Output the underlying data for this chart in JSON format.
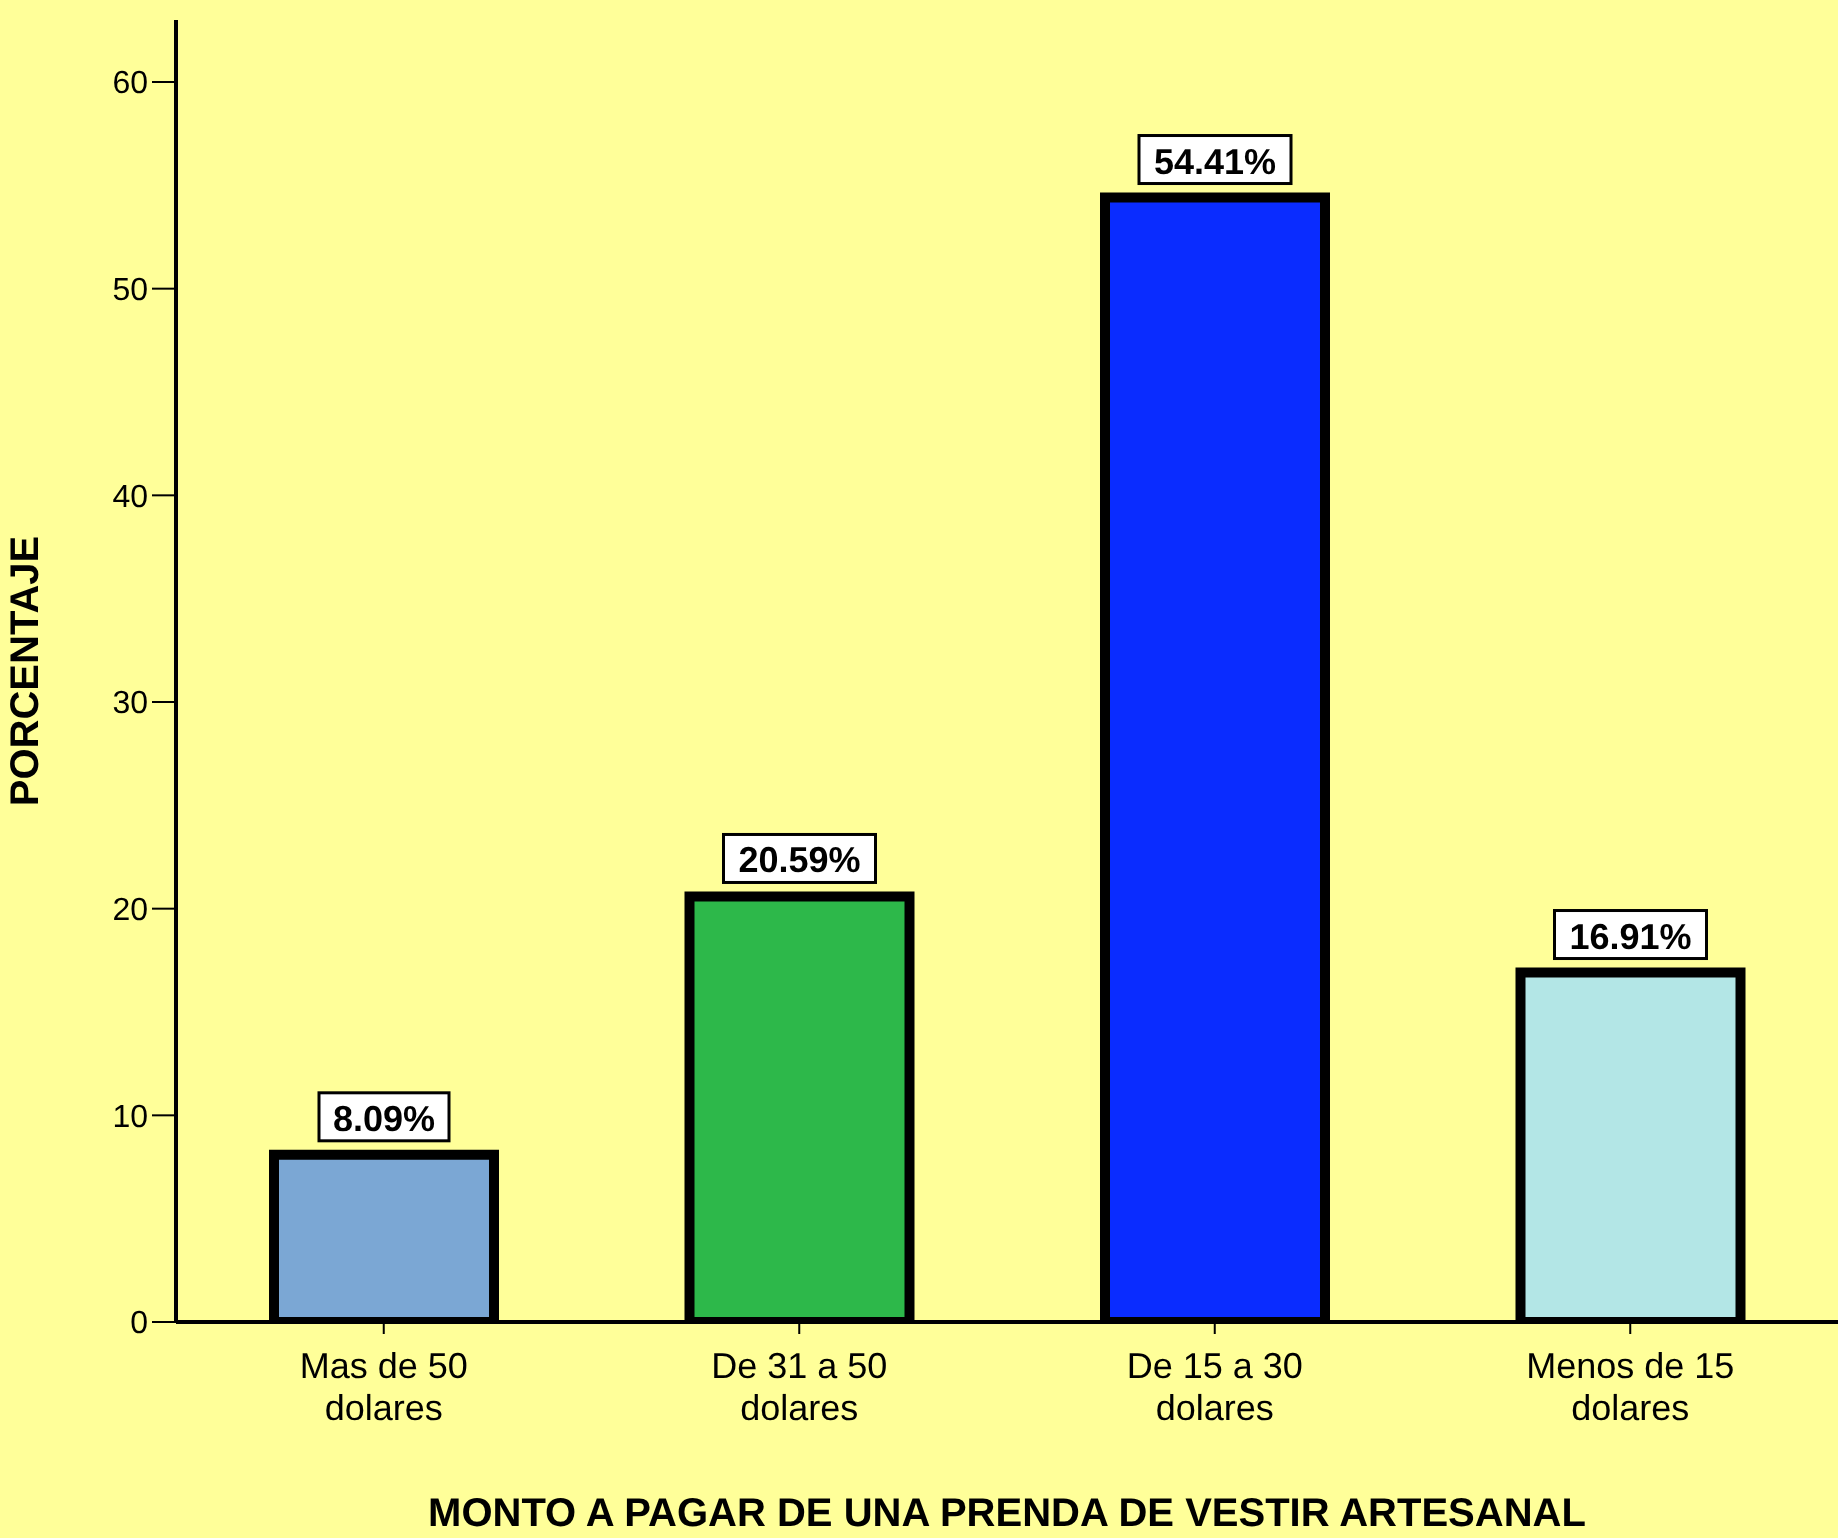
{
  "chart_data": {
    "type": "bar",
    "xlabel": "MONTO A PAGAR DE UNA PRENDA DE VESTIR ARTESANAL",
    "ylabel": "PORCENTAJE",
    "categories": [
      "Mas de 50 dolares",
      "De 31 a 50 dolares",
      "De 15 a 30 dolares",
      "Menos de 15 dolares"
    ],
    "values": [
      8.09,
      20.59,
      54.41,
      16.91
    ],
    "value_labels": [
      "8.09%",
      "20.59%",
      "54.41%",
      "16.91%"
    ],
    "colors": [
      "#7ba7d4",
      "#2db84a",
      "#0a2cff",
      "#b3e6e6"
    ],
    "ylim": [
      0,
      63
    ],
    "yticks": [
      0,
      10,
      20,
      30,
      40,
      50,
      60
    ]
  }
}
